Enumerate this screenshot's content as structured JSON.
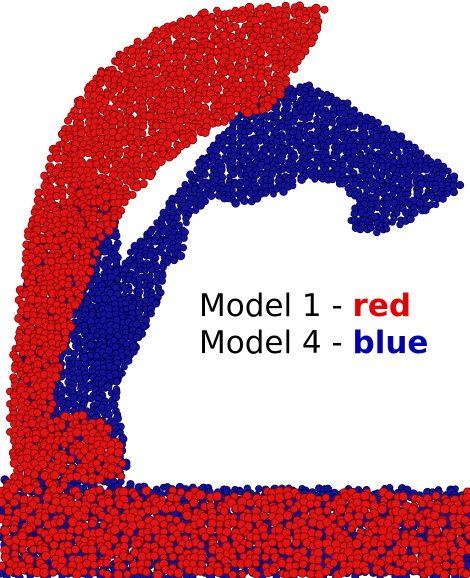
{
  "legend": {
    "line1_prefix": "Model 1 - ",
    "line1_highlight": "red",
    "line2_prefix": "Model 4 - ",
    "line2_highlight": "blue"
  },
  "colors": {
    "red_fill": "#e21414",
    "red_stroke": "#7a0000",
    "blue_fill": "#14149a",
    "blue_stroke": "#00004d",
    "legend_red": "#e60000",
    "legend_blue": "#0000b4"
  }
}
